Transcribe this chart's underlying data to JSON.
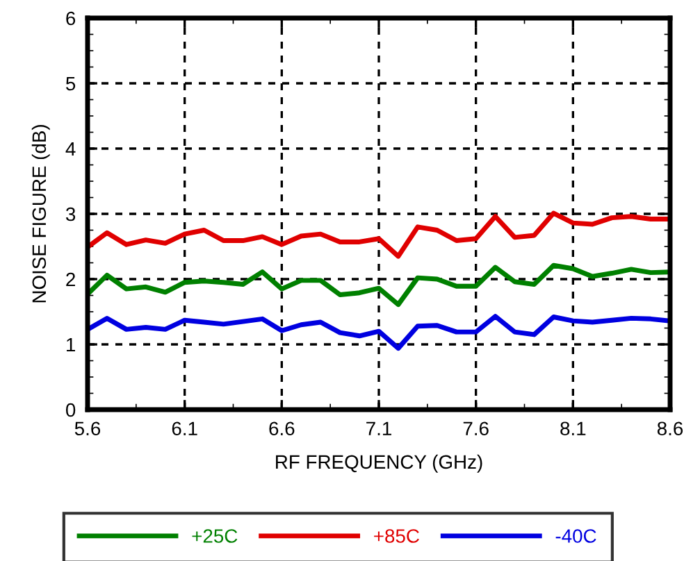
{
  "chart_data": {
    "type": "line",
    "xlabel": "RF FREQUENCY (GHz)",
    "ylabel": "NOISE FIGURE (dB)",
    "x": [
      5.6,
      5.7,
      5.8,
      5.9,
      6.0,
      6.1,
      6.2,
      6.3,
      6.4,
      6.5,
      6.6,
      6.7,
      6.8,
      6.9,
      7.0,
      7.1,
      7.2,
      7.3,
      7.4,
      7.5,
      7.6,
      7.7,
      7.8,
      7.9,
      8.0,
      8.1,
      8.2,
      8.3,
      8.4,
      8.5,
      8.6
    ],
    "series": [
      {
        "name": "+25C",
        "color": "#008000",
        "values": [
          1.77,
          2.06,
          1.85,
          1.88,
          1.8,
          1.95,
          1.97,
          1.95,
          1.92,
          2.11,
          1.85,
          1.98,
          1.98,
          1.76,
          1.79,
          1.86,
          1.61,
          2.02,
          2.0,
          1.89,
          1.89,
          2.18,
          1.96,
          1.92,
          2.21,
          2.16,
          2.04,
          2.09,
          2.15,
          2.1,
          2.11
        ]
      },
      {
        "name": "+85C",
        "color": "#e00000",
        "values": [
          2.49,
          2.71,
          2.53,
          2.6,
          2.55,
          2.69,
          2.75,
          2.59,
          2.59,
          2.65,
          2.53,
          2.66,
          2.69,
          2.57,
          2.57,
          2.62,
          2.35,
          2.8,
          2.75,
          2.59,
          2.62,
          2.96,
          2.64,
          2.67,
          3.01,
          2.86,
          2.84,
          2.94,
          2.96,
          2.92,
          2.92
        ]
      },
      {
        "name": "-40C",
        "color": "#0000e0",
        "values": [
          1.23,
          1.4,
          1.23,
          1.26,
          1.23,
          1.37,
          1.34,
          1.31,
          1.35,
          1.39,
          1.21,
          1.3,
          1.34,
          1.18,
          1.13,
          1.2,
          0.94,
          1.28,
          1.29,
          1.19,
          1.19,
          1.43,
          1.19,
          1.15,
          1.42,
          1.36,
          1.34,
          1.37,
          1.4,
          1.39,
          1.36
        ]
      }
    ],
    "xlim": [
      5.6,
      8.6
    ],
    "xticks": [
      5.6,
      6.1,
      6.6,
      7.1,
      7.6,
      8.1,
      8.6
    ],
    "ylim": [
      0,
      6
    ],
    "yticks": [
      0,
      1,
      2,
      3,
      4,
      5,
      6
    ],
    "grid": true,
    "legend": "bottom",
    "marker": "none",
    "line_style": "solid"
  }
}
